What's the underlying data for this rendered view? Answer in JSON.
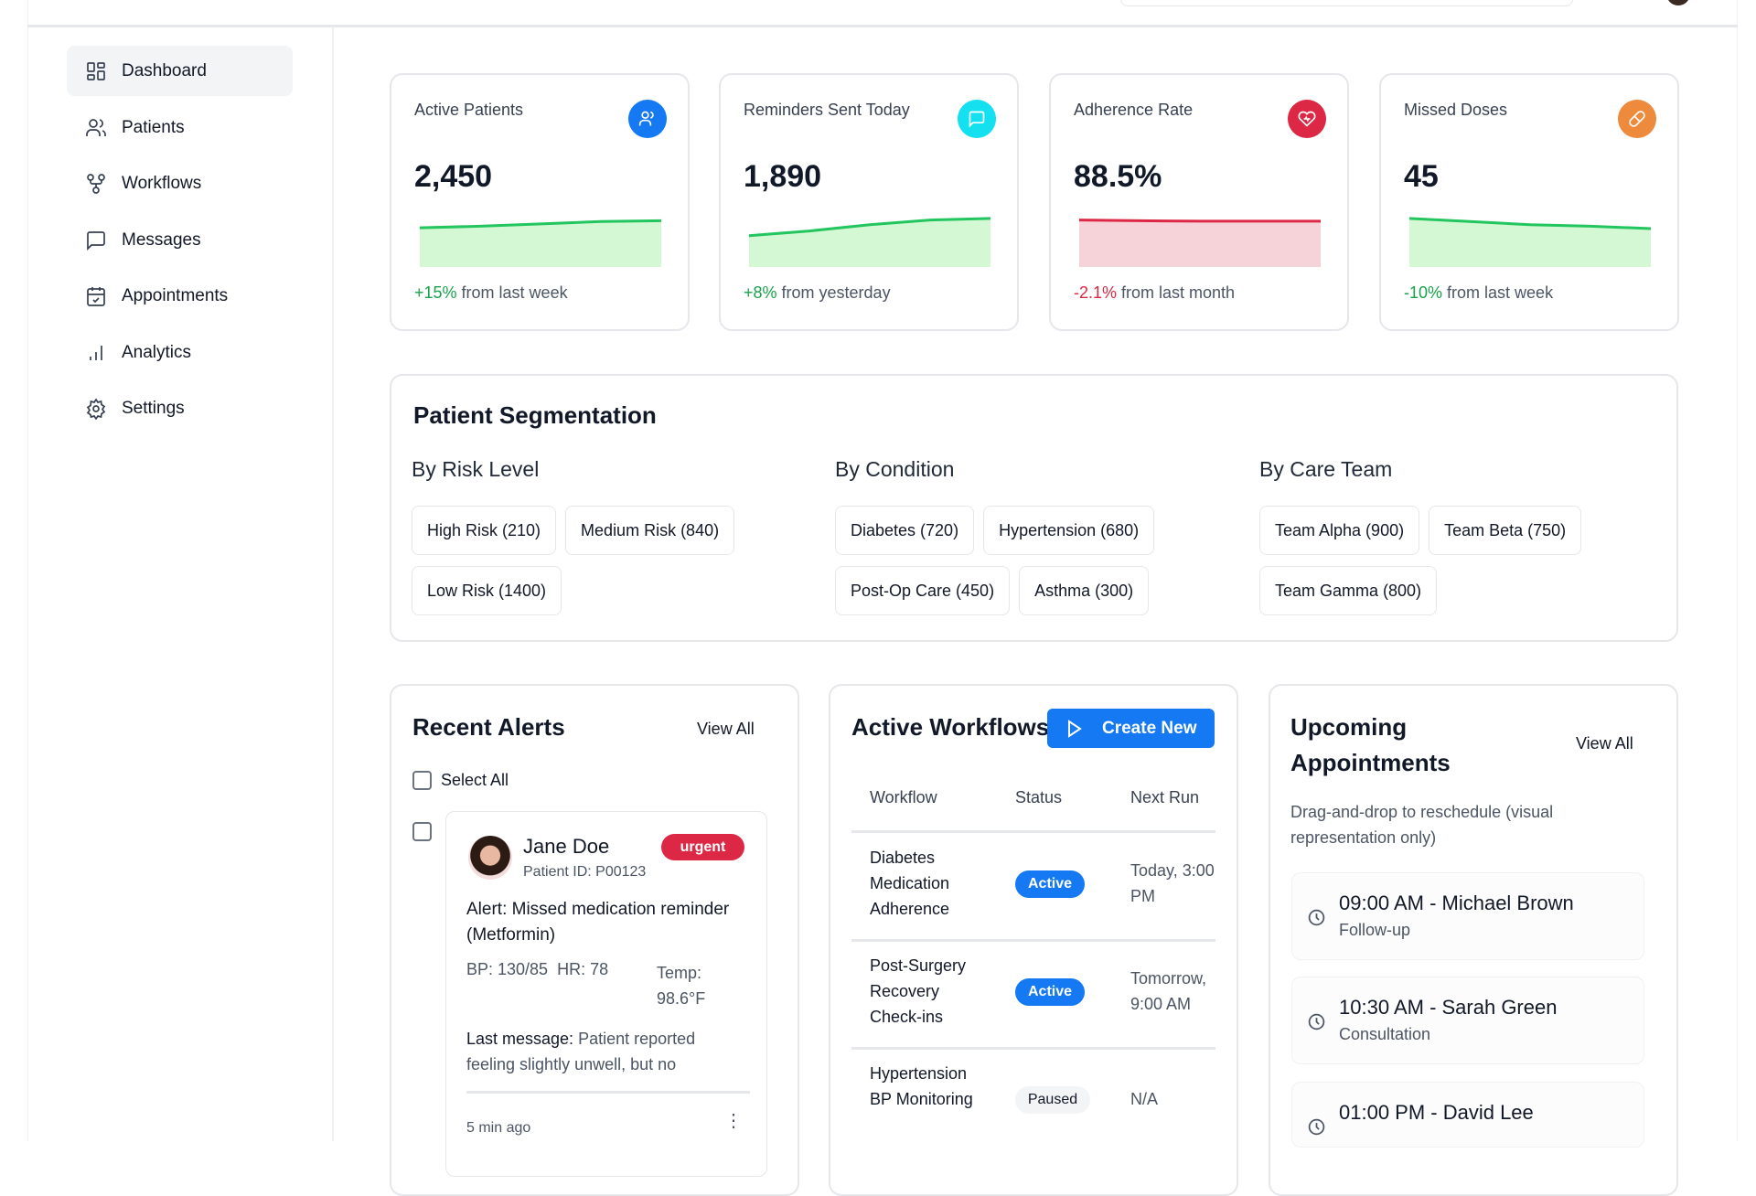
{
  "sidebar": {
    "items": [
      {
        "label": "Dashboard",
        "icon": "dashboard-icon"
      },
      {
        "label": "Patients",
        "icon": "users-icon"
      },
      {
        "label": "Workflows",
        "icon": "workflow-icon"
      },
      {
        "label": "Messages",
        "icon": "message-icon"
      },
      {
        "label": "Appointments",
        "icon": "calendar-check-icon"
      },
      {
        "label": "Analytics",
        "icon": "bar-chart-icon"
      },
      {
        "label": "Settings",
        "icon": "gear-icon"
      }
    ]
  },
  "stats": [
    {
      "title": "Active Patients",
      "value": "2,450",
      "change": "+15%",
      "change_text": " from last week",
      "icon": "users-icon",
      "color": "#1479f2",
      "trend": [
        50,
        52,
        55,
        58,
        59
      ],
      "trend_color": "#22c55e",
      "fill": "#d3f8d3",
      "change_color": "#16a34a"
    },
    {
      "title": "Reminders Sent Today",
      "value": "1,890",
      "change": "+8%",
      "change_text": " from yesterday",
      "icon": "message-icon",
      "color": "#14e0f0",
      "trend": [
        40,
        46,
        54,
        60,
        62
      ],
      "trend_color": "#22c55e",
      "fill": "#d3f8d3",
      "change_color": "#16a34a"
    },
    {
      "title": "Adherence Rate",
      "value": "88.5%",
      "change": "-2.1%",
      "change_text": " from last month",
      "icon": "heart-icon",
      "color": "#dc2745",
      "trend": [
        60,
        59,
        58.5,
        58.5,
        58.5
      ],
      "trend_color": "#dc2745",
      "fill": "#f6d3d9",
      "change_color": "#dc2745"
    },
    {
      "title": "Missed Doses",
      "value": "45",
      "change": "-10%",
      "change_text": " from last week",
      "icon": "pill-icon",
      "color": "#ee8a3c",
      "trend": [
        62,
        58,
        54,
        52,
        49
      ],
      "trend_color": "#22c55e",
      "fill": "#d3f8d3",
      "change_color": "#16a34a"
    }
  ],
  "segmentation": {
    "title": "Patient Segmentation",
    "groups": [
      {
        "title": "By Risk Level",
        "chips": [
          "High Risk (210)",
          "Medium Risk (840)",
          "Low Risk (1400)"
        ]
      },
      {
        "title": "By Condition",
        "chips": [
          "Diabetes (720)",
          "Hypertension (680)",
          "Post-Op Care (450)",
          "Asthma (300)"
        ]
      },
      {
        "title": "By Care Team",
        "chips": [
          "Team Alpha (900)",
          "Team Beta (750)",
          "Team Gamma (800)"
        ]
      }
    ]
  },
  "alerts": {
    "title": "Recent Alerts",
    "view_all": "View All",
    "select_all": "Select All",
    "items": [
      {
        "name": "Jane Doe",
        "patient_id": "Patient ID: P00123",
        "badge": "urgent",
        "alert": "Alert: Missed medication reminder (Metformin)",
        "vitals": "BP: 130/85  HR: 78",
        "temp": "Temp: 98.6°F",
        "last_label": "Last message:",
        "last_text": " Patient reported feeling slightly unwell, but no",
        "time": "5 min ago"
      }
    ]
  },
  "workflows": {
    "title": "Active Workflows",
    "create": "Create New",
    "columns": [
      "Workflow",
      "Status",
      "Next Run"
    ],
    "rows": [
      {
        "name": "Diabetes Medication Adherence",
        "status": "Active",
        "next": "Today, 3:00 PM"
      },
      {
        "name": "Post-Surgery Recovery Check-ins",
        "status": "Active",
        "next": "Tomorrow, 9:00 AM"
      },
      {
        "name": "Hypertension BP Monitoring",
        "status": "Paused",
        "next": "N/A"
      }
    ]
  },
  "appointments": {
    "title": "Upcoming Appointments",
    "view_all": "View All",
    "description": "Drag-and-drop to reschedule (visual representation only)",
    "items": [
      {
        "main": "09:00 AM - Michael Brown",
        "sub": "Follow-up"
      },
      {
        "main": "10:30 AM - Sarah Green",
        "sub": "Consultation"
      },
      {
        "main": "01:00 PM - David Lee",
        "sub": ""
      }
    ]
  }
}
